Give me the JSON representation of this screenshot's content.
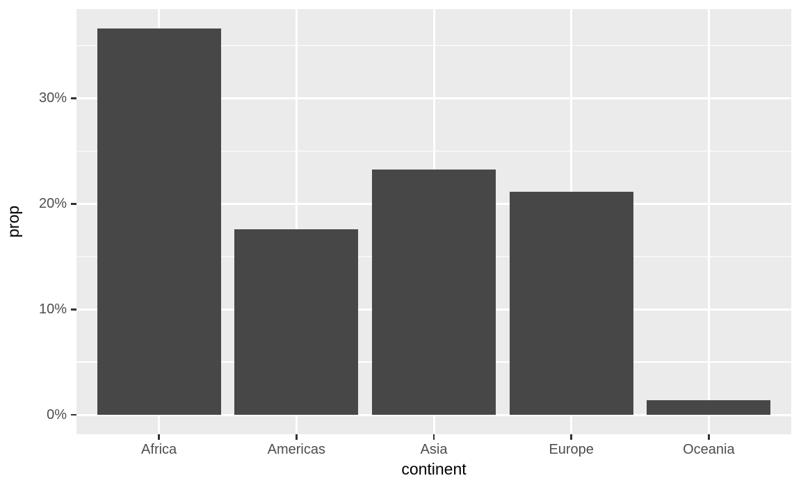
{
  "chart_data": {
    "type": "bar",
    "title": "",
    "xlabel": "continent",
    "ylabel": "prop",
    "categories": [
      "Africa",
      "Americas",
      "Asia",
      "Europe",
      "Oceania"
    ],
    "values": [
      36.62,
      17.61,
      23.24,
      21.13,
      1.41
    ],
    "value_unit": "percent",
    "y_tick_labels": [
      "0%",
      "10%",
      "20%",
      "30%"
    ],
    "y_major_breaks": [
      0,
      10,
      20,
      30
    ],
    "y_minor_breaks": [
      5,
      15,
      25,
      35
    ],
    "ylim": [
      -1.831,
      38.451
    ],
    "legend_position": "none",
    "grid": "on",
    "style": "ggplot2",
    "colors": {
      "bar_fill": "#474747",
      "panel_background": "#EBEBEB",
      "gridline": "#FFFFFF",
      "tick_mark": "#333333",
      "tick_label": "#4D4D4D",
      "axis_title": "#000000",
      "figure_background": "#FFFFFF"
    }
  }
}
